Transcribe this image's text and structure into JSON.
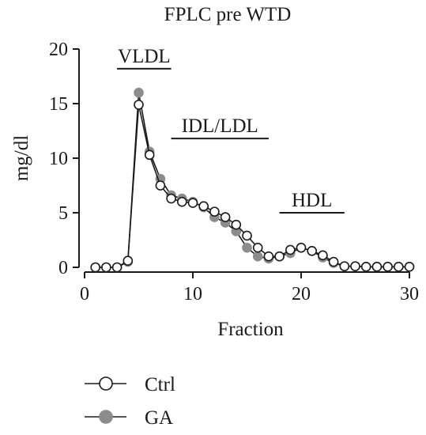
{
  "chart_data": {
    "type": "line",
    "title": "FPLC pre WTD",
    "xlabel": "Fraction",
    "ylabel": "mg/dl",
    "xlim": [
      0,
      30
    ],
    "ylim": [
      0,
      20
    ],
    "xticks": [
      0,
      10,
      20,
      30
    ],
    "yticks": [
      0,
      5,
      10,
      15,
      20
    ],
    "grid": false,
    "legend_position": "bottom-left",
    "region_labels": [
      {
        "label": "VLDL",
        "x_start": 3,
        "x_end": 8,
        "y": 18.2
      },
      {
        "label": "IDL/LDL",
        "x_start": 8,
        "x_end": 17,
        "y": 11.8
      },
      {
        "label": "HDL",
        "x_start": 18,
        "x_end": 24,
        "y": 5.0
      }
    ],
    "series": [
      {
        "name": "GA",
        "color": "#8c8c8c",
        "marker": "filled-circle",
        "x": [
          1,
          2,
          3,
          4,
          5,
          6,
          7,
          8,
          9,
          10,
          11,
          12,
          13,
          14,
          15,
          16,
          17,
          18,
          19,
          20,
          21,
          22,
          23,
          24,
          25,
          26,
          27,
          28,
          29,
          30
        ],
        "y": [
          0,
          0,
          0,
          0.5,
          16,
          10.6,
          8.1,
          6.6,
          6.3,
          6.0,
          5.5,
          4.6,
          4.1,
          3.3,
          1.8,
          1.0,
          0.8,
          1.0,
          1.3,
          1.8,
          1.5,
          0.9,
          0.4,
          0.1,
          0.1,
          0.05,
          0.05,
          0.05,
          0.05,
          0.05
        ]
      },
      {
        "name": "Ctrl",
        "color": "#ffffff",
        "marker": "open-circle",
        "x": [
          1,
          2,
          3,
          4,
          5,
          6,
          7,
          8,
          9,
          10,
          11,
          12,
          13,
          14,
          15,
          16,
          17,
          18,
          19,
          20,
          21,
          22,
          23,
          24,
          25,
          26,
          27,
          28,
          29,
          30
        ],
        "y": [
          0,
          0,
          0,
          0.6,
          14.9,
          10.3,
          7.5,
          6.3,
          6.0,
          5.9,
          5.6,
          5.1,
          4.6,
          3.9,
          2.9,
          1.8,
          1.0,
          1.0,
          1.6,
          1.8,
          1.5,
          1.1,
          0.5,
          0.1,
          0.1,
          0.05,
          0.05,
          0.05,
          0.05,
          0.05
        ]
      }
    ],
    "legend": [
      {
        "label": "Ctrl",
        "series": "Ctrl"
      },
      {
        "label": "GA",
        "series": "GA"
      }
    ]
  }
}
